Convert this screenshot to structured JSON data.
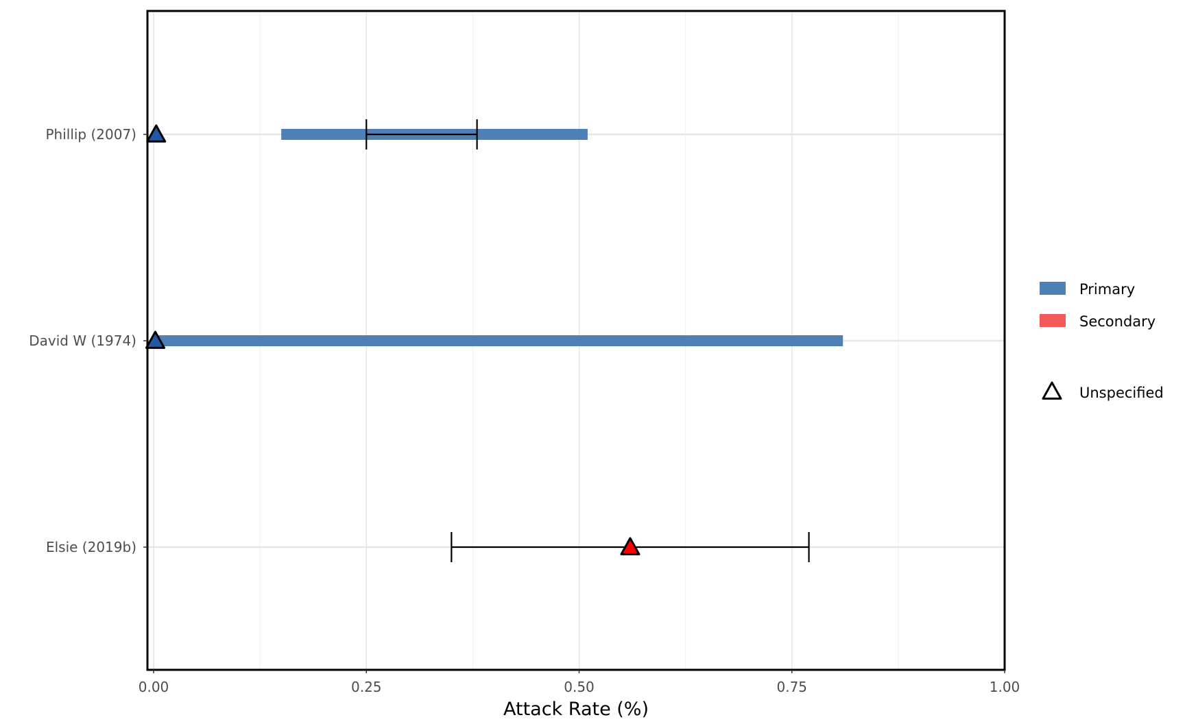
{
  "chart_data": {
    "type": "range-bar",
    "xlabel": "Attack Rate (%)",
    "ylabel": "",
    "xlim": [
      -0.02,
      1.0
    ],
    "x_ticks": [
      0.0,
      0.25,
      0.5,
      0.75,
      1.0
    ],
    "x_tick_labels": [
      "0.00",
      "0.25",
      "0.50",
      "0.75",
      "1.00"
    ],
    "categories": [
      "Phillip (2007)",
      "David W (1974)",
      "Elsie (2019b)"
    ],
    "grid": true,
    "legend_position": "right",
    "colors": {
      "Primary": "#4e7fb5",
      "Secondary": "#f25a5a",
      "Primary_point": "#1f5aa6",
      "Secondary_point": "#ff0000"
    },
    "ranges": [
      {
        "category": "Phillip (2007)",
        "group": "Primary",
        "low": 0.15,
        "high": 0.51
      },
      {
        "category": "David W (1974)",
        "group": "Primary",
        "low": 0.0,
        "high": 0.81
      }
    ],
    "error_bars": [
      {
        "category": "Phillip (2007)",
        "low": 0.25,
        "high": 0.38
      },
      {
        "category": "Elsie (2019b)",
        "low": 0.35,
        "high": 0.77
      }
    ],
    "points": [
      {
        "category": "Phillip (2007)",
        "group": "Primary",
        "x": 0.003,
        "shape": "triangle"
      },
      {
        "category": "David W (1974)",
        "group": "Primary",
        "x": 0.002,
        "shape": "triangle"
      },
      {
        "category": "Elsie (2019b)",
        "group": "Secondary",
        "x": 0.56,
        "shape": "triangle"
      }
    ],
    "legend": {
      "fill_entries": [
        "Primary",
        "Secondary"
      ],
      "shape_entries": [
        "Unspecified"
      ]
    }
  }
}
